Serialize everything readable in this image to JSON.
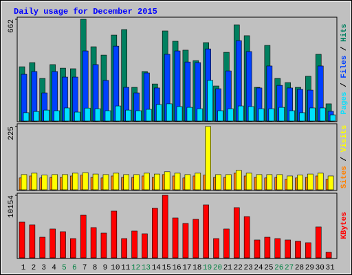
{
  "chart_data": [
    {
      "type": "bar",
      "title": "Daily usage for December 2015",
      "legend_separator": " / ",
      "ylim": [
        0,
        662
      ],
      "yticks": [
        662
      ],
      "series": [
        {
          "name": "Pages",
          "color": "#00e0ff",
          "values": [
            54,
            62,
            71,
            67,
            85,
            58,
            84,
            80,
            67,
            98,
            71,
            67,
            76,
            107,
            112,
            94,
            89,
            80,
            264,
            67,
            80,
            98,
            94,
            80,
            80,
            89,
            67,
            54,
            85,
            85,
            40
          ]
        },
        {
          "name": "Files",
          "color": "#0040ff",
          "values": [
            304,
            322,
            183,
            322,
            286,
            286,
            456,
            367,
            264,
            487,
            219,
            183,
            313,
            215,
            434,
            456,
            384,
            380,
            469,
            210,
            326,
            523,
            452,
            215,
            358,
            232,
            215,
            206,
            201,
            358,
            63
          ]
        },
        {
          "name": "Hits",
          "color": "#008060",
          "values": [
            353,
            380,
            277,
            367,
            344,
            340,
            662,
            483,
            429,
            559,
            595,
            219,
            322,
            241,
            586,
            519,
            461,
            393,
            510,
            228,
            447,
            626,
            555,
            219,
            492,
            277,
            250,
            219,
            291,
            434,
            112
          ]
        }
      ]
    },
    {
      "type": "bar",
      "legend_separator": " / ",
      "ylim": [
        0,
        225
      ],
      "yticks": [
        225
      ],
      "series": [
        {
          "name": "Sites",
          "color": "#ff8000",
          "values": [
            42,
            49,
            42,
            44,
            44,
            49,
            52,
            44,
            42,
            49,
            44,
            44,
            49,
            44,
            54,
            49,
            42,
            49,
            52,
            44,
            44,
            59,
            49,
            44,
            42,
            44,
            37,
            42,
            44,
            49,
            37
          ]
        },
        {
          "name": "Visits",
          "color": "#ffff00",
          "values": [
            54,
            59,
            52,
            54,
            54,
            59,
            61,
            56,
            54,
            59,
            54,
            54,
            59,
            56,
            64,
            59,
            54,
            59,
            225,
            54,
            54,
            69,
            59,
            54,
            54,
            54,
            49,
            52,
            56,
            59,
            49
          ]
        }
      ]
    },
    {
      "type": "bar",
      "ylim": [
        0,
        10154
      ],
      "yticks": [
        10154
      ],
      "categories": [
        "1",
        "2",
        "3",
        "4",
        "5",
        "6",
        "7",
        "8",
        "9",
        "10",
        "11",
        "12",
        "13",
        "14",
        "15",
        "16",
        "17",
        "18",
        "19",
        "20",
        "21",
        "22",
        "23",
        "24",
        "25",
        "26",
        "27",
        "28",
        "29",
        "30",
        "31"
      ],
      "highlighted_categories": [
        "5",
        "6",
        "12",
        "13",
        "19",
        "20",
        "26",
        "27"
      ],
      "highlight_color": "#008040",
      "series": [
        {
          "name": "KBytes",
          "color": "#ff0000",
          "values": [
            5803,
            5357,
            3348,
            4687,
            4241,
            3125,
            6919,
            4910,
            4018,
            7589,
            3125,
            4352,
            3906,
            8035,
            10154,
            6473,
            5580,
            6250,
            8593,
            3125,
            4687,
            8147,
            6696,
            2902,
            3348,
            3125,
            2902,
            2678,
            2455,
            5022,
            893
          ]
        }
      ]
    }
  ]
}
